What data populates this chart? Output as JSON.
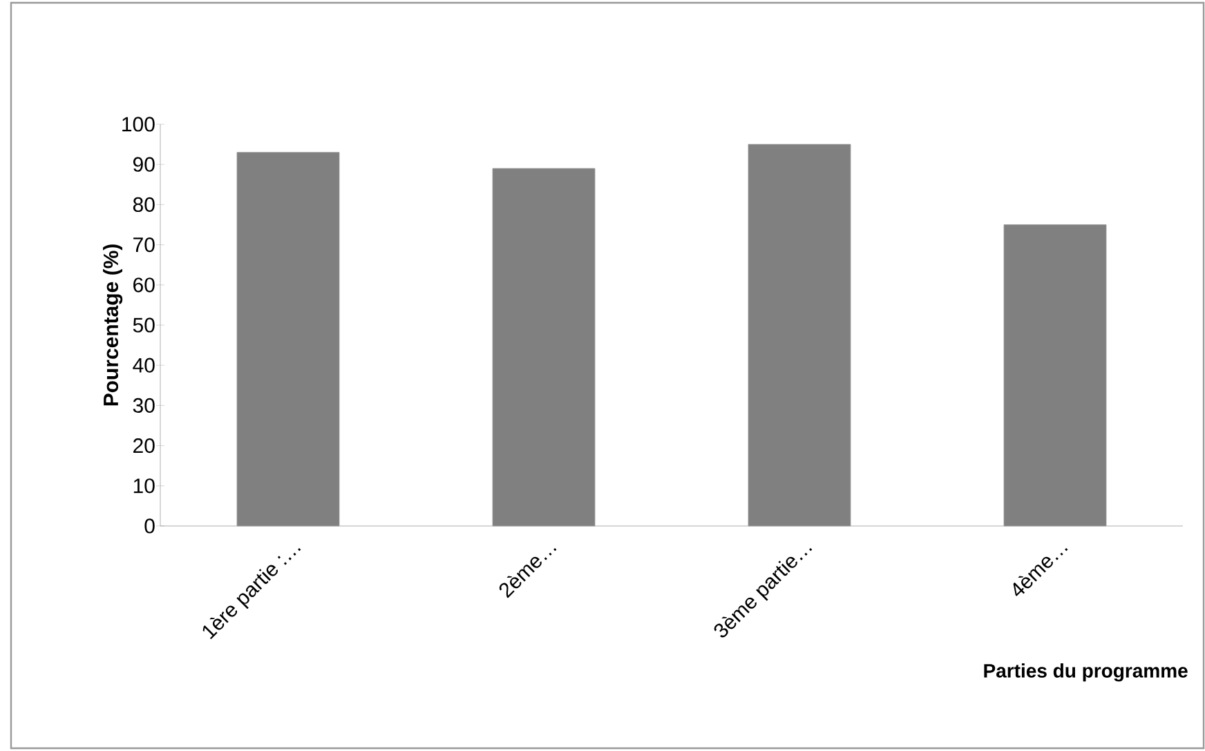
{
  "chart_data": {
    "type": "bar",
    "xlabel": "Parties du programme",
    "ylabel": "Pourcentage (%)",
    "categories": [
      "1ère partie :…",
      "2ème…",
      "3ème partie…",
      "4ème…"
    ],
    "values": [
      93,
      89,
      95,
      75
    ],
    "color": "#808080",
    "ylim": [
      0,
      100
    ],
    "yticks": [
      0,
      10,
      20,
      30,
      40,
      50,
      60,
      70,
      80,
      90,
      100
    ],
    "grid": false
  }
}
